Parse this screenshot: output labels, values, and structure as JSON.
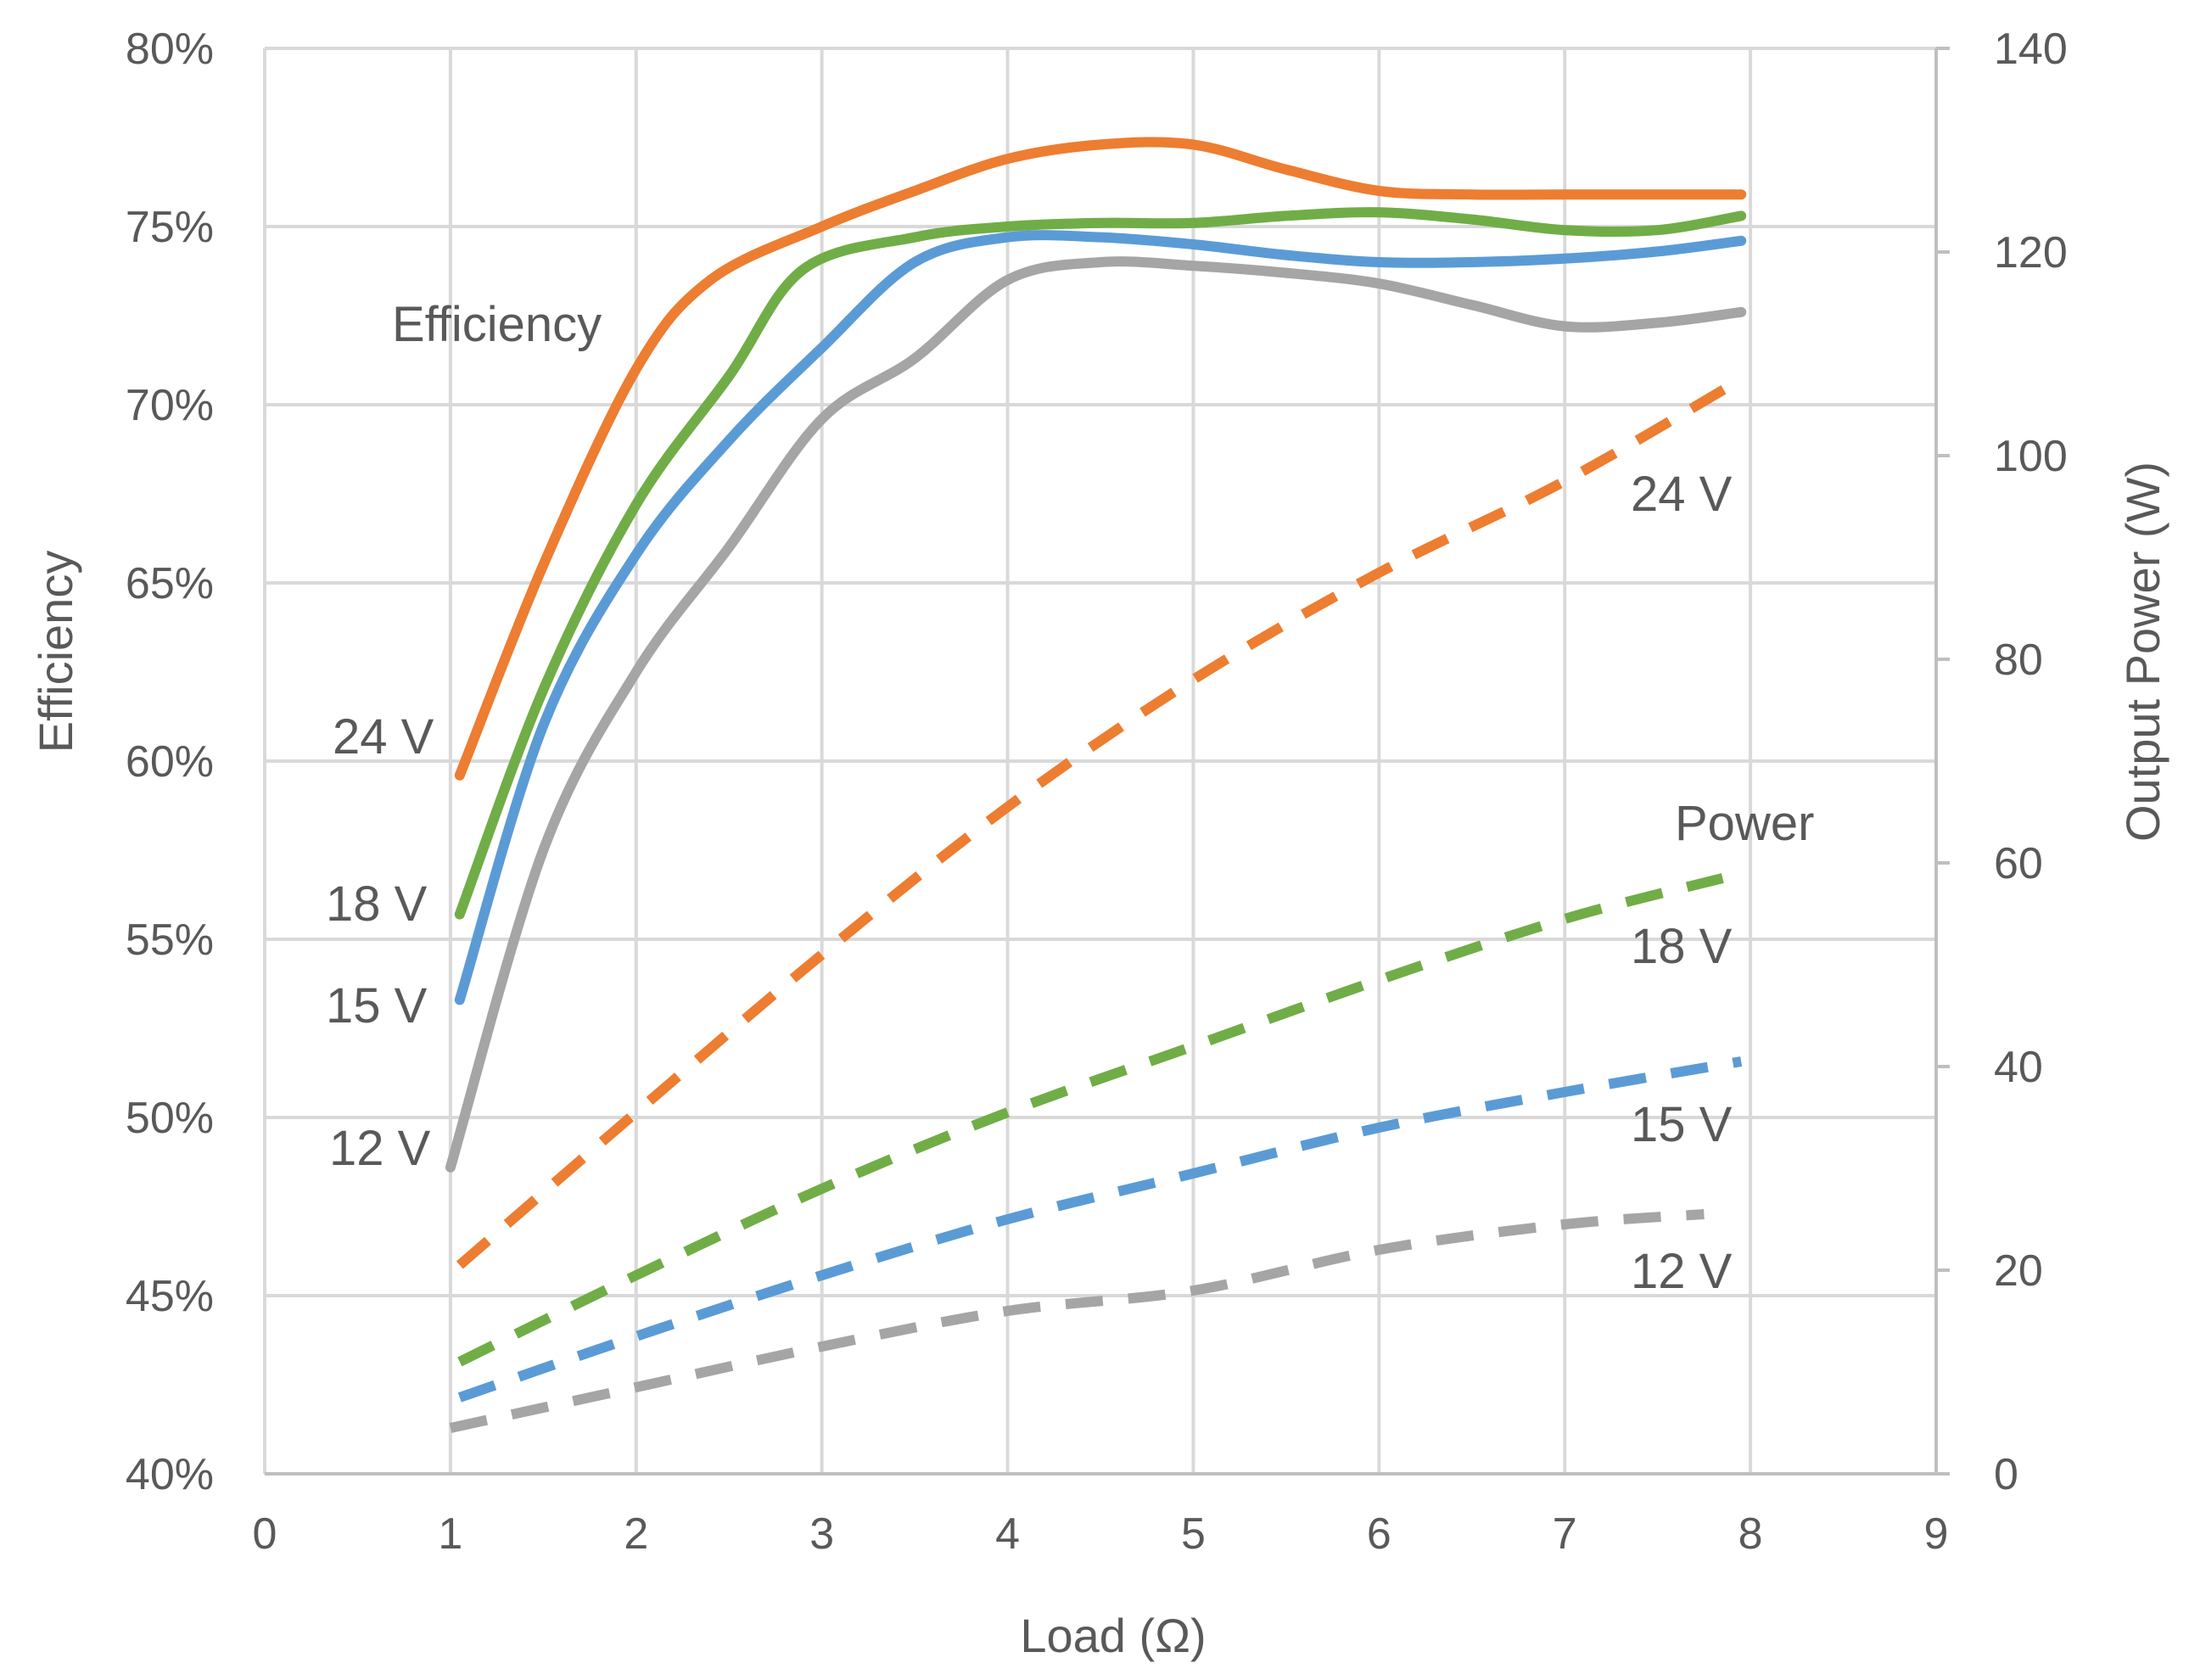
{
  "chart_data": {
    "type": "line",
    "title": "",
    "xlabel": "Load (Ω)",
    "ylabel": "Efficiency",
    "y2label": "Output Power (W)",
    "xlim": [
      0,
      9
    ],
    "ylim": [
      40,
      80
    ],
    "y2lim": [
      0,
      140
    ],
    "x_ticks": [
      "0",
      "1",
      "2",
      "3",
      "4",
      "5",
      "6",
      "7",
      "8",
      "9"
    ],
    "y_ticks": [
      "40%",
      "45%",
      "50%",
      "55%",
      "60%",
      "65%",
      "70%",
      "75%",
      "80%"
    ],
    "y2_ticks": [
      "0",
      "20",
      "40",
      "60",
      "80",
      "100",
      "120",
      "140"
    ],
    "grid": true,
    "colors": {
      "24 V": "#ED7D31",
      "18 V": "#70AD47",
      "15 V": "#5B9BD5",
      "12 V": "#A5A5A5",
      "text": "#595959",
      "grid": "#D9D9D9"
    },
    "efficiency_series": [
      {
        "name": "24 V",
        "x": [
          1.05,
          1.5,
          2.0,
          2.4,
          3.0,
          3.5,
          4.0,
          4.5,
          5.0,
          5.5,
          6.0,
          6.5,
          7.0,
          7.5,
          7.95
        ],
        "y": [
          59.6,
          65.5,
          71.0,
          73.5,
          75.0,
          76.0,
          76.9,
          77.3,
          77.3,
          76.6,
          76.0,
          75.9,
          75.9,
          75.9,
          75.9
        ]
      },
      {
        "name": "18 V",
        "x": [
          1.05,
          1.5,
          2.0,
          2.5,
          2.9,
          3.5,
          4.0,
          4.5,
          5.0,
          5.5,
          6.0,
          6.5,
          7.0,
          7.5,
          7.95
        ],
        "y": [
          55.7,
          62.0,
          67.2,
          70.8,
          73.8,
          74.7,
          75.0,
          75.1,
          75.1,
          75.3,
          75.4,
          75.2,
          74.9,
          74.9,
          75.3
        ]
      },
      {
        "name": "15 V",
        "x": [
          1.05,
          1.5,
          2.0,
          2.5,
          3.0,
          3.5,
          4.0,
          4.5,
          5.0,
          5.5,
          6.0,
          6.5,
          7.0,
          7.5,
          7.95
        ],
        "y": [
          53.3,
          61.0,
          65.8,
          69.0,
          71.6,
          74.0,
          74.7,
          74.7,
          74.5,
          74.2,
          74.0,
          74.0,
          74.1,
          74.3,
          74.6
        ]
      },
      {
        "name": "12 V",
        "x": [
          1.0,
          1.5,
          2.0,
          2.5,
          3.0,
          3.5,
          4.0,
          4.5,
          5.0,
          5.5,
          6.0,
          6.5,
          7.0,
          7.5,
          7.95
        ],
        "y": [
          48.6,
          57.5,
          62.5,
          66.0,
          69.6,
          71.3,
          73.5,
          74.0,
          73.9,
          73.7,
          73.4,
          72.8,
          72.2,
          72.3,
          72.6
        ]
      }
    ],
    "power_series": [
      {
        "name": "24 V",
        "x": [
          1.05,
          2,
          3,
          4,
          5,
          6,
          7,
          7.95
        ],
        "y": [
          20.5,
          35.5,
          51.0,
          65.5,
          78.0,
          88.5,
          97.5,
          107.5
        ]
      },
      {
        "name": "18 V",
        "x": [
          1.05,
          2,
          3,
          4,
          5,
          6,
          7,
          7.85
        ],
        "y": [
          11.0,
          19.5,
          28.0,
          35.5,
          42.0,
          48.5,
          54.5,
          58.5
        ]
      },
      {
        "name": "15 V",
        "x": [
          1.05,
          2,
          3,
          4,
          5,
          6,
          7,
          7.95
        ],
        "y": [
          7.5,
          13.5,
          19.5,
          25.0,
          29.5,
          34.0,
          37.5,
          40.5
        ]
      },
      {
        "name": "12 V",
        "x": [
          1.0,
          2,
          3,
          4,
          5,
          6,
          7,
          7.75
        ],
        "y": [
          4.5,
          8.5,
          12.5,
          16.0,
          18.0,
          22.0,
          24.5,
          25.5
        ]
      }
    ],
    "annotations": {
      "efficiency_title": "Efficiency",
      "power_title": "Power",
      "eff_24": "24 V",
      "eff_18": "18 V",
      "eff_15": "15 V",
      "eff_12": "12 V",
      "pow_24": "24 V",
      "pow_18": "18 V",
      "pow_15": "15 V",
      "pow_12": "12 V"
    }
  }
}
